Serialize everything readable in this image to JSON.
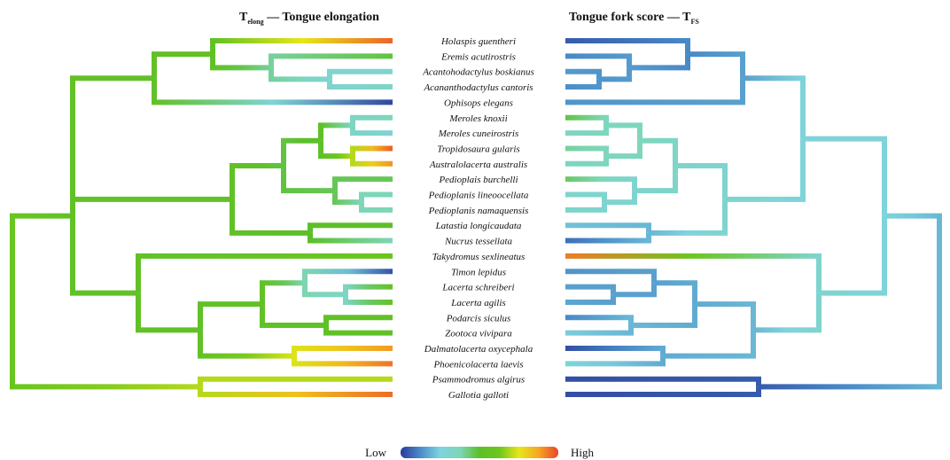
{
  "titles": {
    "left_main": "T",
    "left_sub": "elong",
    "left_rest": " — Tongue elongation",
    "right_main": "Tongue fork score — T",
    "right_sub": "FS"
  },
  "taxa": [
    "Holaspis guentheri",
    "Eremis acutirostris",
    "Acantohodactylus boskianus",
    "Acananthodactylus cantoris",
    "Ophisops elegans",
    "Meroles knoxii",
    "Meroles cuneirostris",
    "Tropidosaura gularis",
    "Australolacerta australis",
    "Pedioplais burchelli",
    "Pedioplanis lineoocellata",
    "Pedioplanis namaquensis",
    "Latastia longicaudata",
    "Nucrus tessellata",
    "Takydromus sexlineatus",
    "Timon lepidus",
    "Lacerta schreiberi",
    "Lacerta agilis",
    "Podarcis siculus",
    "Zootoca vivipara",
    "Dalmatolacerta oxycephala",
    "Phoenicolacerta laevis",
    "Psammodromus algirus",
    "Gallotia galloti"
  ],
  "legend": {
    "low": "Low",
    "high": "High",
    "colors": [
      "#2b3a9a",
      "#4a8cc8",
      "#7fd3dd",
      "#7ed6b8",
      "#5cbf2a",
      "#6cc61e",
      "#e6e61a",
      "#f5a623",
      "#e8452a"
    ]
  },
  "trait_scale": "0 = Low (dark blue), 1 = High (red)",
  "left_tree": {
    "trait": "Tongue elongation",
    "tip_values": [
      0.96,
      0.48,
      0.3,
      0.32,
      0.02,
      0.36,
      0.28,
      0.97,
      0.9,
      0.46,
      0.36,
      0.38,
      0.52,
      0.37,
      0.61,
      0.04,
      0.56,
      0.56,
      0.54,
      0.53,
      0.89,
      0.94,
      0.7,
      0.95
    ],
    "node_values": {
      "root": 0.6,
      "lacertini_eremiadini": 0.54,
      "gallotiinae": 0.7,
      "eremiadini": 0.54,
      "lacertini": 0.54,
      "clade_a": 0.54,
      "holaspis_group": 0.54,
      "acantho_group": 0.4,
      "acantho_pair": 0.3,
      "clade_b": 0.54,
      "meroles_group": 0.48,
      "meroles_pair": 0.34,
      "tropido_pair": 0.7,
      "pedio_group": 0.46,
      "pedio_pair": 0.37,
      "latastia_pair": 0.5,
      "lacertini_sub": 0.54,
      "clade_c": 0.54,
      "timon_group": 0.38,
      "lacerta_pair": 0.34,
      "podarcis_pair": 0.53,
      "dalmato_pair": 0.74
    }
  },
  "right_tree": {
    "trait": "Tongue fork score",
    "tip_values": [
      0.05,
      0.12,
      0.15,
      0.13,
      0.14,
      0.48,
      0.33,
      0.4,
      0.34,
      0.45,
      0.3,
      0.32,
      0.22,
      0.08,
      0.93,
      0.14,
      0.16,
      0.17,
      0.12,
      0.24,
      0.03,
      0.28,
      0.03,
      0.03
    ],
    "node_values": {
      "root": 0.2,
      "lacertini_eremiadini": 0.26,
      "gallotiinae": 0.05,
      "eremiadini": 0.26,
      "lacertini": 0.3,
      "clade_a": 0.16,
      "holaspis_group": 0.12,
      "acantho_group": 0.15,
      "acantho_pair": 0.14,
      "clade_b": 0.3,
      "meroles_group": 0.32,
      "meroles_pair": 0.36,
      "tropido_pair": 0.36,
      "pedio_group": 0.3,
      "pedio_pair": 0.3,
      "latastia_pair": 0.2,
      "lacertini_sub": 0.2,
      "clade_c": 0.18,
      "timon_group": 0.16,
      "lacerta_pair": 0.16,
      "podarcis_pair": 0.2,
      "dalmato_pair": 0.18
    }
  }
}
